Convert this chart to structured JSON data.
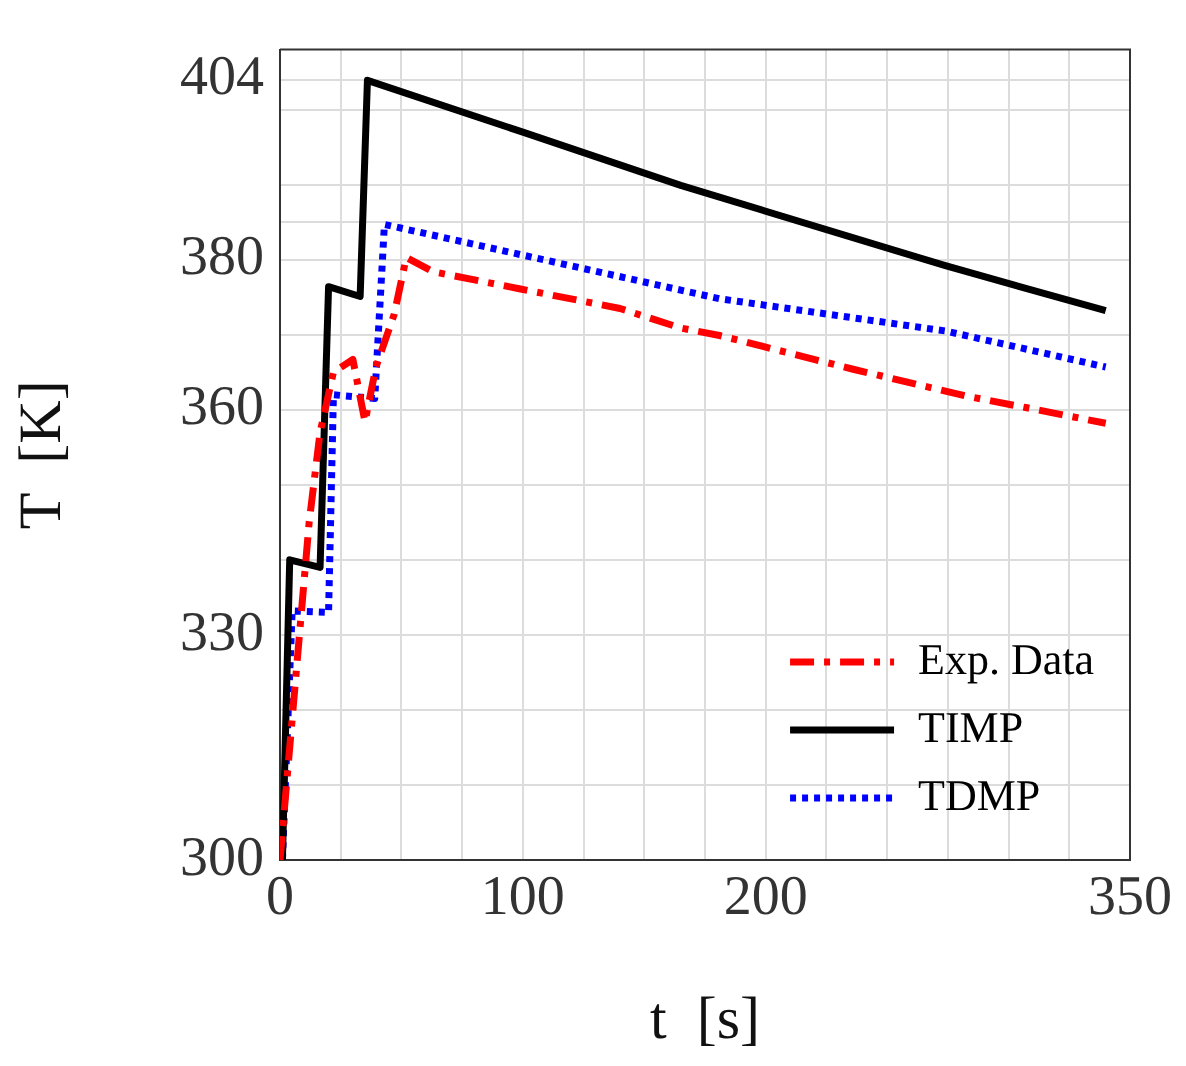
{
  "chart_data": {
    "type": "line",
    "xlabel": "t  [s]",
    "ylabel": "T  [K]",
    "xlim": [
      0,
      350
    ],
    "ylim": [
      300,
      408
    ],
    "xticks": [
      0,
      {
        "value": 25,
        "label": null
      },
      {
        "value": 50,
        "label": null
      },
      {
        "value": 75,
        "label": null
      },
      100,
      {
        "value": 125,
        "label": null
      },
      {
        "value": 150,
        "label": null
      },
      {
        "value": 175,
        "label": null
      },
      200,
      {
        "value": 225,
        "label": null
      },
      {
        "value": 250,
        "label": null
      },
      {
        "value": 275,
        "label": null
      },
      {
        "value": 300,
        "label": null
      },
      {
        "value": 325,
        "label": null
      },
      350
    ],
    "yticks": [
      300,
      {
        "value": 310,
        "label": null
      },
      {
        "value": 320,
        "label": null
      },
      330,
      {
        "value": 340,
        "label": null
      },
      {
        "value": 350,
        "label": null
      },
      360,
      {
        "value": 370,
        "label": null
      },
      380,
      {
        "value": 385,
        "label": null
      },
      {
        "value": 390,
        "label": null
      },
      {
        "value": 400,
        "label": null
      },
      404
    ],
    "grid": true,
    "legend": "bottom right",
    "marker": "none",
    "series": [
      {
        "name": "Exp. Data",
        "color": "#ff0000",
        "line_style": "dashed",
        "x": [
          0,
          4,
          8,
          12,
          16.5,
          22,
          30,
          35,
          39.5,
          47,
          52,
          63,
          99,
          140,
          165,
          181,
          236,
          283,
          307,
          340
        ],
        "values": [
          300,
          315,
          330,
          345,
          357,
          365,
          366.7,
          358.4,
          365.7,
          372.7,
          380.3,
          378.4,
          376.1,
          373.5,
          370.9,
          369.9,
          365.4,
          361.8,
          360.3,
          358.2
        ]
      },
      {
        "name": "TIMP",
        "color": "#000000",
        "line_style": "solid",
        "x": [
          1,
          4,
          16.5,
          20,
          33,
          36,
          100,
          165,
          274,
          340
        ],
        "values": [
          300,
          340,
          339,
          376.4,
          375.1,
          403.9,
          397,
          389.9,
          379.2,
          373.2
        ]
      },
      {
        "name": "TDMP",
        "color": "#0000ff",
        "line_style": "dotted",
        "x": [
          1,
          5,
          20,
          22,
          39,
          43,
          181,
          274,
          340
        ],
        "values": [
          300,
          333.2,
          333,
          362,
          361.5,
          384.7,
          374.8,
          370.5,
          365.7
        ]
      }
    ]
  }
}
